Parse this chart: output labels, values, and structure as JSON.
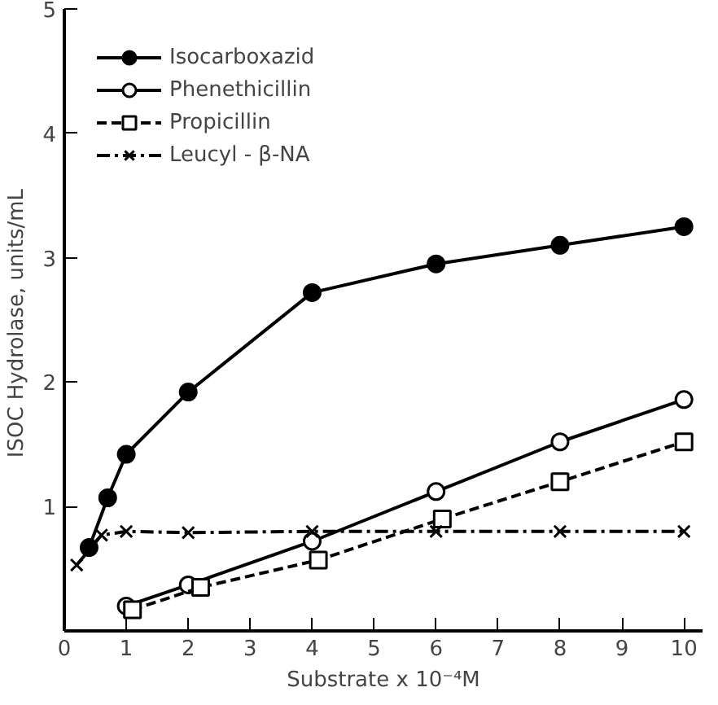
{
  "chart_data": {
    "type": "line",
    "xlabel": "Substrate x 10⁻⁴M",
    "ylabel": "ISOC Hydrolase,  units/mL",
    "xlim": [
      0,
      10.3
    ],
    "ylim": [
      0,
      5
    ],
    "xticks": [
      0,
      1,
      2,
      3,
      4,
      5,
      6,
      7,
      8,
      9,
      10
    ],
    "yticks": [
      1,
      2,
      3,
      4,
      5
    ],
    "grid": false,
    "legend": "top left",
    "series": [
      {
        "name": "Isocarboxazid",
        "color": "#000000",
        "marker": "circle",
        "line_style": "solid",
        "x": [
          0.4,
          0.7,
          1.0,
          2.0,
          4,
          6,
          8,
          10
        ],
        "values": [
          0.67,
          1.07,
          1.42,
          1.92,
          2.72,
          2.95,
          3.1,
          3.25
        ]
      },
      {
        "name": "Phenethicillin",
        "color": "#000000",
        "marker": "circle",
        "line_style": "solid",
        "x": [
          1,
          2,
          4,
          6,
          8,
          10
        ],
        "values": [
          0.2,
          0.37,
          0.72,
          1.12,
          1.52,
          1.86
        ]
      },
      {
        "name": "Propicillin",
        "color": "#000000",
        "marker": "square",
        "line_style": "dashed",
        "x": [
          1.1,
          2.2,
          4.1,
          6.1,
          8,
          10
        ],
        "values": [
          0.17,
          0.35,
          0.57,
          0.9,
          1.2,
          1.52
        ]
      },
      {
        "name": "Leucyl - β-NA",
        "color": "#000000",
        "marker": "cross",
        "line_style": "dashdot",
        "x": [
          0.2,
          0.6,
          1.0,
          2,
          4,
          6,
          8,
          10
        ],
        "values": [
          0.53,
          0.77,
          0.8,
          0.79,
          0.8,
          0.8,
          0.8,
          0.8
        ]
      }
    ]
  }
}
